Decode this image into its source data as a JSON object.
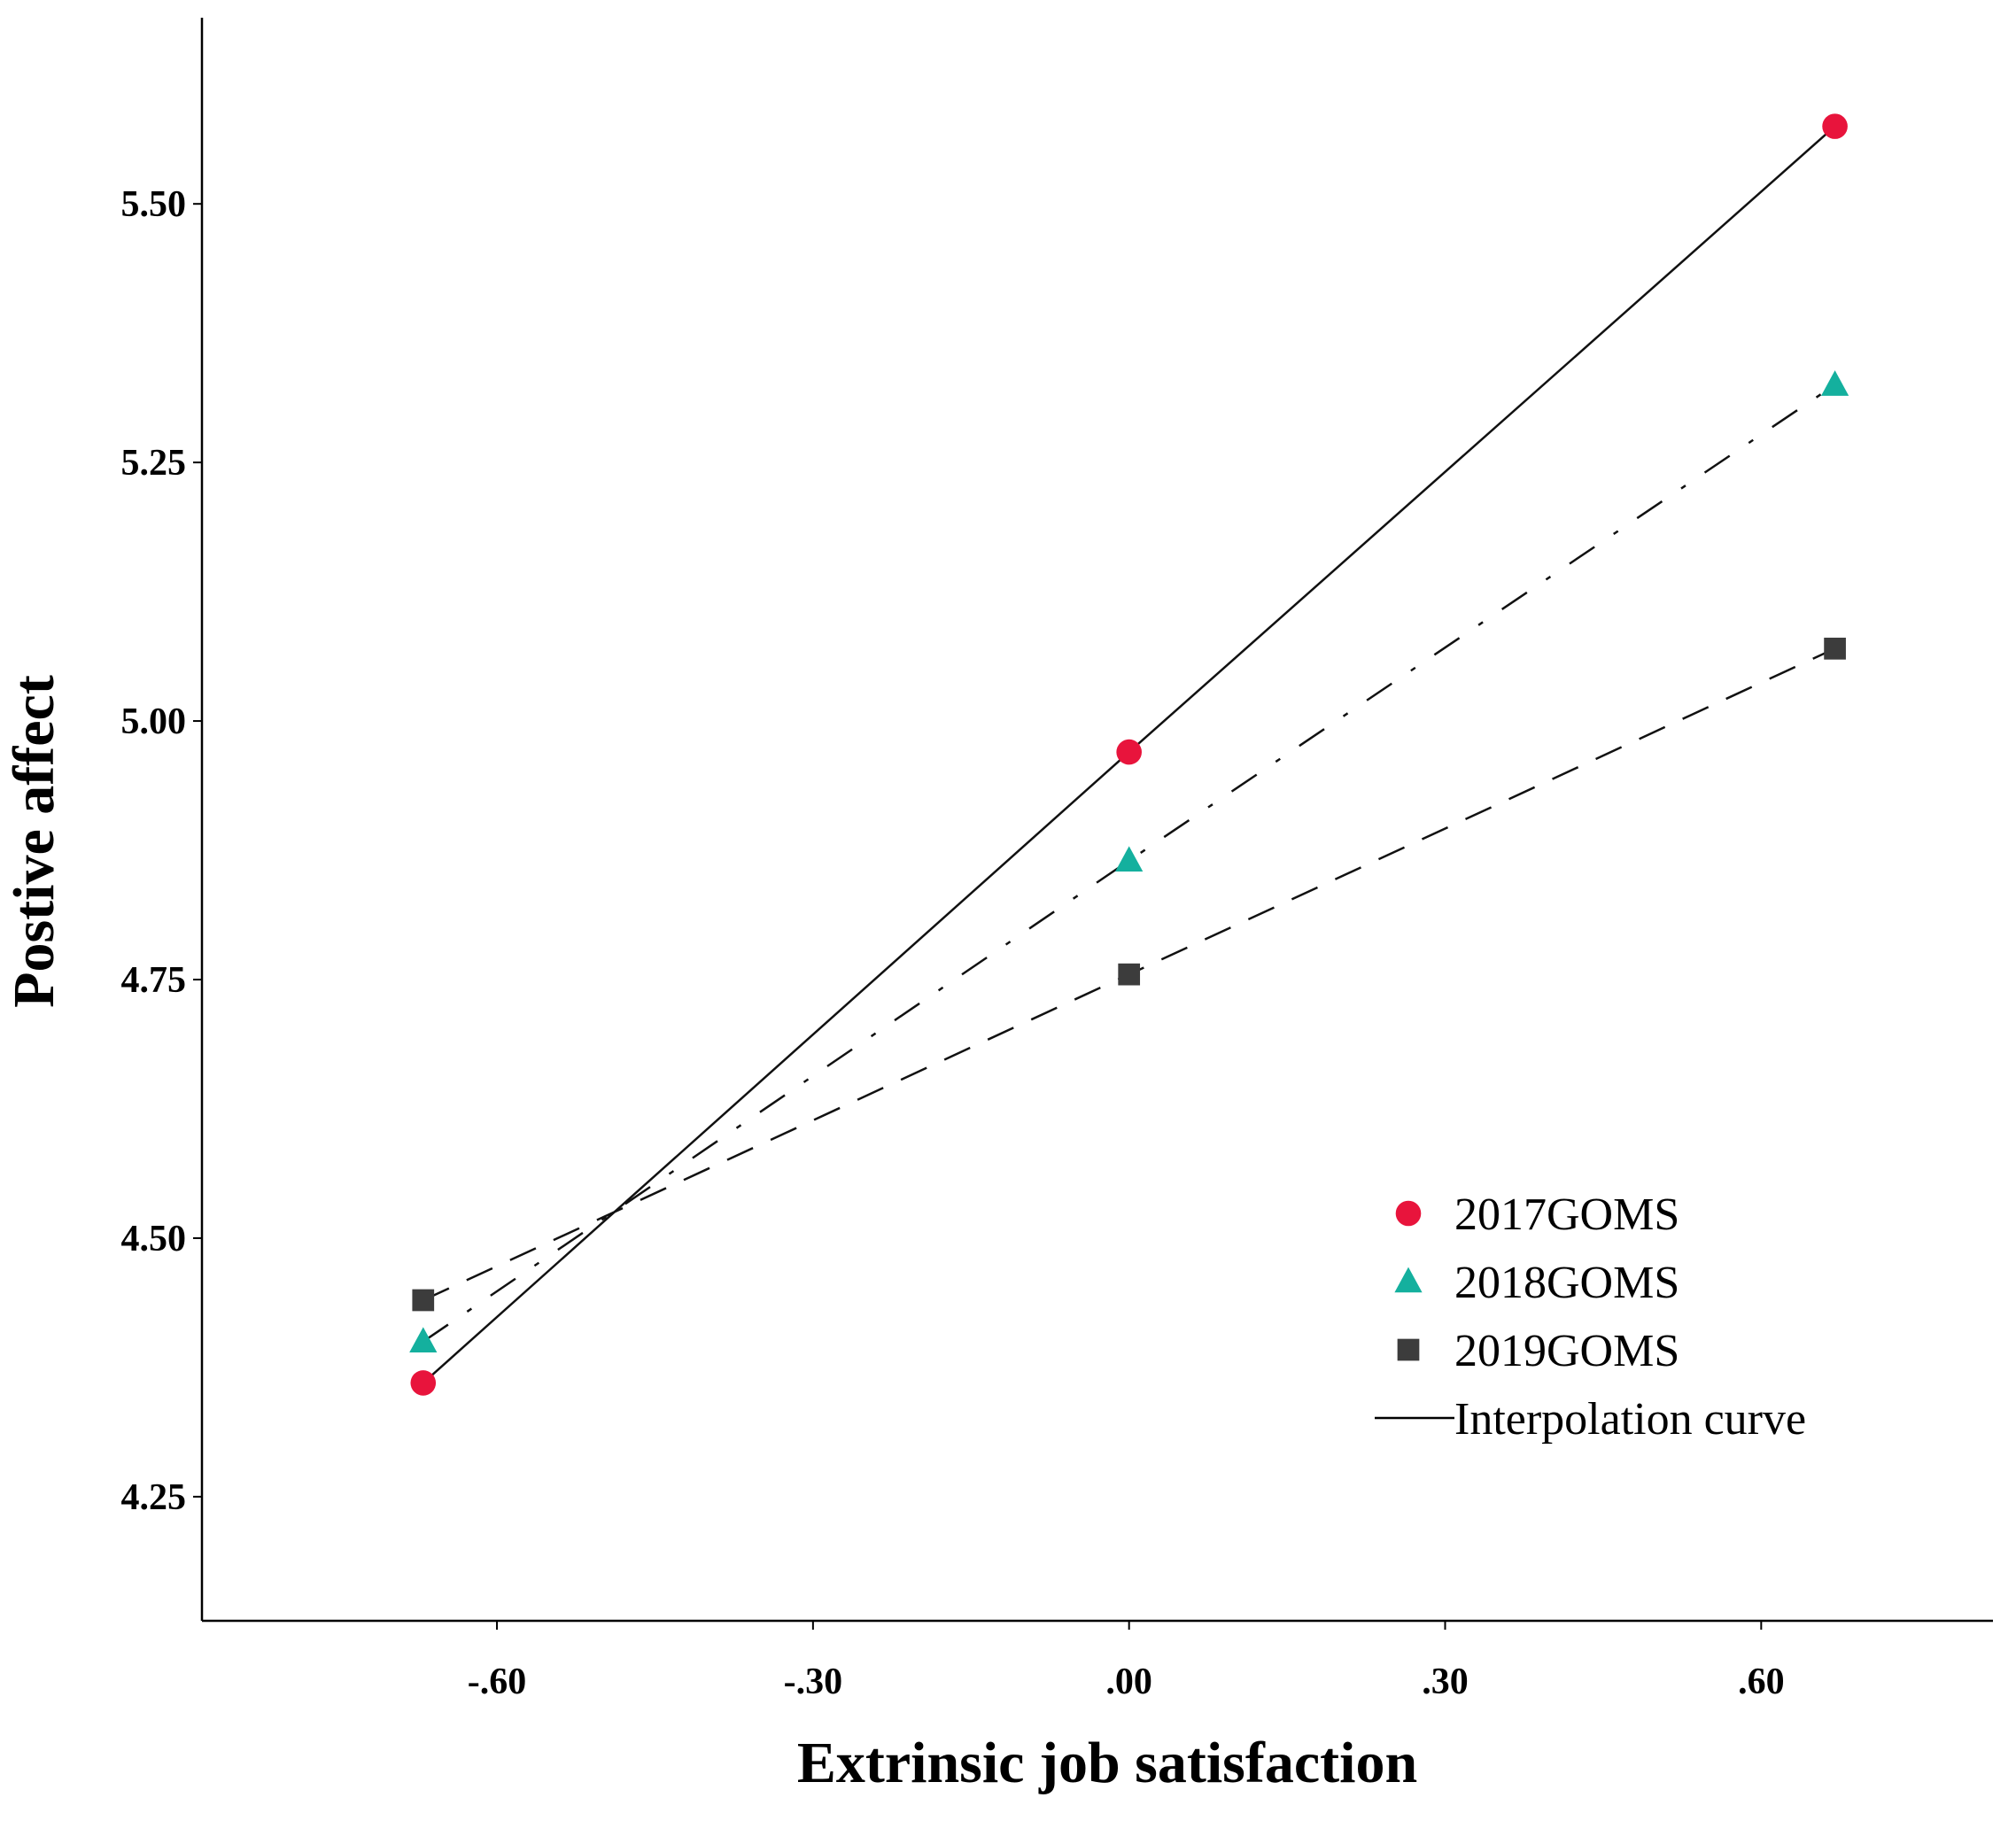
{
  "chart_data": {
    "type": "line",
    "title": "",
    "xlabel": "Extrinsic job satisfaction",
    "ylabel": "Postive affect",
    "xlim": [
      -0.88,
      0.82
    ],
    "ylim": [
      4.13,
      5.68
    ],
    "x_ticks": [
      -0.6,
      -0.3,
      0.0,
      0.3,
      0.6
    ],
    "x_tick_labels": [
      "-.60",
      "-.30",
      ".00",
      ".30",
      ".60"
    ],
    "y_ticks": [
      4.25,
      4.5,
      4.75,
      5.0,
      5.25,
      5.5
    ],
    "y_tick_labels": [
      "4.25",
      "4.50",
      "4.75",
      "5.00",
      "5.25",
      "5.50"
    ],
    "grid": false,
    "legend_position": "bottom-right",
    "series": [
      {
        "name": "2017GOMS",
        "marker": "circle",
        "color": "#e8143c",
        "line_style": "solid",
        "x": [
          -0.67,
          0.0,
          0.67
        ],
        "y": [
          4.36,
          4.97,
          5.575
        ]
      },
      {
        "name": "2018GOMS",
        "marker": "triangle",
        "color": "#14b09e",
        "line_style": "dashdot",
        "x": [
          -0.67,
          0.0,
          0.67
        ],
        "y": [
          4.4,
          4.865,
          5.325
        ]
      },
      {
        "name": "2019GOMS",
        "marker": "square",
        "color": "#3c3c3c",
        "line_style": "dashed",
        "x": [
          -0.67,
          0.0,
          0.67
        ],
        "y": [
          4.44,
          4.755,
          5.07
        ]
      }
    ],
    "legend": [
      {
        "label": "2017GOMS",
        "symbol": "circle",
        "color": "#e8143c"
      },
      {
        "label": "2018GOMS",
        "symbol": "triangle",
        "color": "#14b09e"
      },
      {
        "label": "2019GOMS",
        "symbol": "square",
        "color": "#3c3c3c"
      },
      {
        "label": "Interpolation curve",
        "symbol": "line",
        "color": "#000000"
      }
    ]
  }
}
